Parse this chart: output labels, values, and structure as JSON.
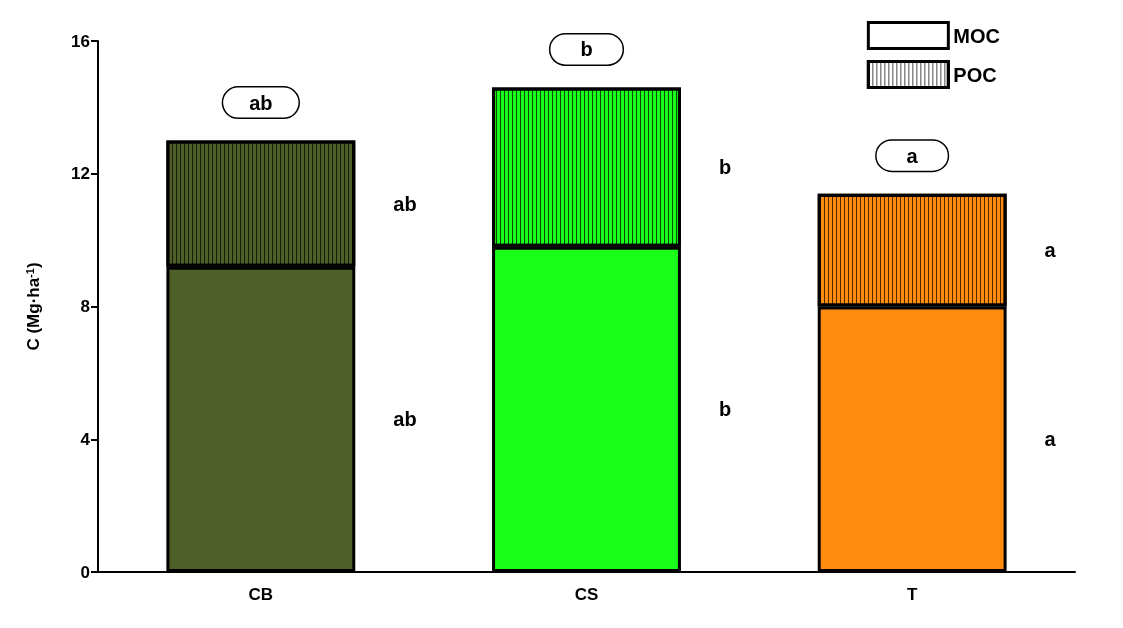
{
  "chart_data": {
    "type": "bar",
    "stacked": true,
    "ylabel": "C (Mg·ha$^{-1}$)",
    "categories": [
      "CB",
      "CS",
      "T"
    ],
    "series": [
      {
        "name": "MOC",
        "color": "#ffffff",
        "colors": [
          "#4f5f2a",
          "#1aff1a",
          "#ff8c0f"
        ],
        "values": [
          9.2,
          9.8,
          8.0
        ]
      },
      {
        "name": "POC",
        "color": "#ffffff",
        "colors": [
          "#4f5f2a",
          "#1aff1a",
          "#ff8c0f"
        ],
        "values": [
          3.8,
          4.8,
          3.4
        ]
      }
    ],
    "ylim": [
      0,
      16
    ],
    "yticks": [
      0,
      4,
      8,
      12,
      16
    ],
    "grid": false,
    "legend": "top right",
    "annotations": [
      "ab",
      "b",
      "a",
      "ab",
      "ab",
      "b",
      "b",
      "a",
      "a"
    ]
  }
}
